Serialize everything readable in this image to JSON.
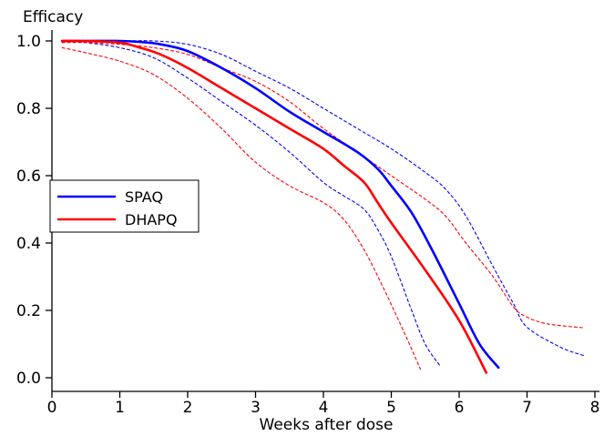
{
  "chart_data": {
    "type": "line",
    "title": "",
    "xlabel": "Weeks after dose",
    "ylabel": "Efficacy",
    "xlim": [
      0,
      8
    ],
    "ylim": [
      0,
      1.0
    ],
    "x_ticks": [
      "0",
      "1",
      "2",
      "3",
      "4",
      "5",
      "6",
      "7",
      "8"
    ],
    "y_ticks": [
      "0.0",
      "0.2",
      "0.4",
      "0.6",
      "0.8",
      "1.0"
    ],
    "grid": false,
    "legend": "center-left",
    "series": [
      {
        "name": "SPAQ",
        "color": "#0000ff",
        "style": "solid",
        "points": [
          [
            0.15,
            1.0
          ],
          [
            0.5,
            1.0
          ],
          [
            1.0,
            1.0
          ],
          [
            1.3,
            0.997
          ],
          [
            1.6,
            0.99
          ],
          [
            2.0,
            0.97
          ],
          [
            2.5,
            0.92
          ],
          [
            3.0,
            0.86
          ],
          [
            3.5,
            0.79
          ],
          [
            4.0,
            0.73
          ],
          [
            4.5,
            0.67
          ],
          [
            4.8,
            0.62
          ],
          [
            5.0,
            0.57
          ],
          [
            5.3,
            0.49
          ],
          [
            5.6,
            0.38
          ],
          [
            6.0,
            0.22
          ],
          [
            6.3,
            0.1
          ],
          [
            6.58,
            0.03
          ]
        ]
      },
      {
        "name": "DHAPQ",
        "color": "#ff0000",
        "style": "solid",
        "points": [
          [
            0.15,
            1.0
          ],
          [
            0.5,
            1.0
          ],
          [
            1.0,
            0.995
          ],
          [
            1.3,
            0.98
          ],
          [
            1.6,
            0.96
          ],
          [
            2.0,
            0.92
          ],
          [
            2.5,
            0.86
          ],
          [
            3.0,
            0.8
          ],
          [
            3.5,
            0.74
          ],
          [
            4.0,
            0.68
          ],
          [
            4.3,
            0.63
          ],
          [
            4.6,
            0.58
          ],
          [
            4.8,
            0.52
          ],
          [
            5.0,
            0.46
          ],
          [
            5.5,
            0.32
          ],
          [
            6.0,
            0.17
          ],
          [
            6.4,
            0.015
          ]
        ]
      },
      {
        "name": "",
        "color": "#0000ff",
        "style": "dotted",
        "points": [
          [
            0.15,
            1.0
          ],
          [
            0.5,
            1.0
          ],
          [
            1.0,
            1.0
          ],
          [
            1.5,
            1.0
          ],
          [
            2.0,
            0.99
          ],
          [
            2.5,
            0.96
          ],
          [
            3.0,
            0.91
          ],
          [
            3.5,
            0.86
          ],
          [
            4.0,
            0.8
          ],
          [
            4.5,
            0.74
          ],
          [
            5.0,
            0.68
          ],
          [
            5.5,
            0.61
          ],
          [
            5.8,
            0.56
          ],
          [
            6.1,
            0.48
          ],
          [
            6.5,
            0.33
          ],
          [
            6.8,
            0.22
          ],
          [
            7.0,
            0.15
          ],
          [
            7.5,
            0.09
          ],
          [
            7.85,
            0.065
          ]
        ]
      },
      {
        "name": "",
        "color": "#0000ff",
        "style": "dotted",
        "points": [
          [
            0.15,
            1.0
          ],
          [
            0.5,
            0.995
          ],
          [
            1.0,
            0.98
          ],
          [
            1.5,
            0.95
          ],
          [
            2.0,
            0.89
          ],
          [
            2.5,
            0.82
          ],
          [
            3.0,
            0.75
          ],
          [
            3.5,
            0.67
          ],
          [
            4.0,
            0.58
          ],
          [
            4.3,
            0.54
          ],
          [
            4.6,
            0.5
          ],
          [
            4.8,
            0.44
          ],
          [
            5.0,
            0.36
          ],
          [
            5.3,
            0.2
          ],
          [
            5.5,
            0.1
          ],
          [
            5.72,
            0.035
          ]
        ]
      },
      {
        "name": "",
        "color": "#ff0000",
        "style": "dotted",
        "points": [
          [
            0.15,
            0.995
          ],
          [
            0.5,
            0.995
          ],
          [
            1.0,
            0.99
          ],
          [
            1.5,
            0.98
          ],
          [
            2.0,
            0.96
          ],
          [
            2.5,
            0.92
          ],
          [
            3.0,
            0.88
          ],
          [
            3.5,
            0.82
          ],
          [
            4.0,
            0.74
          ],
          [
            4.5,
            0.67
          ],
          [
            5.0,
            0.6
          ],
          [
            5.5,
            0.53
          ],
          [
            5.8,
            0.48
          ],
          [
            6.1,
            0.4
          ],
          [
            6.5,
            0.3
          ],
          [
            6.8,
            0.21
          ],
          [
            7.0,
            0.18
          ],
          [
            7.3,
            0.16
          ],
          [
            7.85,
            0.148
          ]
        ]
      },
      {
        "name": "",
        "color": "#ff0000",
        "style": "dotted",
        "points": [
          [
            0.15,
            0.98
          ],
          [
            0.5,
            0.965
          ],
          [
            1.0,
            0.94
          ],
          [
            1.5,
            0.9
          ],
          [
            2.0,
            0.83
          ],
          [
            2.5,
            0.74
          ],
          [
            3.0,
            0.64
          ],
          [
            3.5,
            0.57
          ],
          [
            4.0,
            0.52
          ],
          [
            4.3,
            0.47
          ],
          [
            4.6,
            0.38
          ],
          [
            4.9,
            0.26
          ],
          [
            5.2,
            0.13
          ],
          [
            5.43,
            0.025
          ]
        ]
      }
    ]
  }
}
